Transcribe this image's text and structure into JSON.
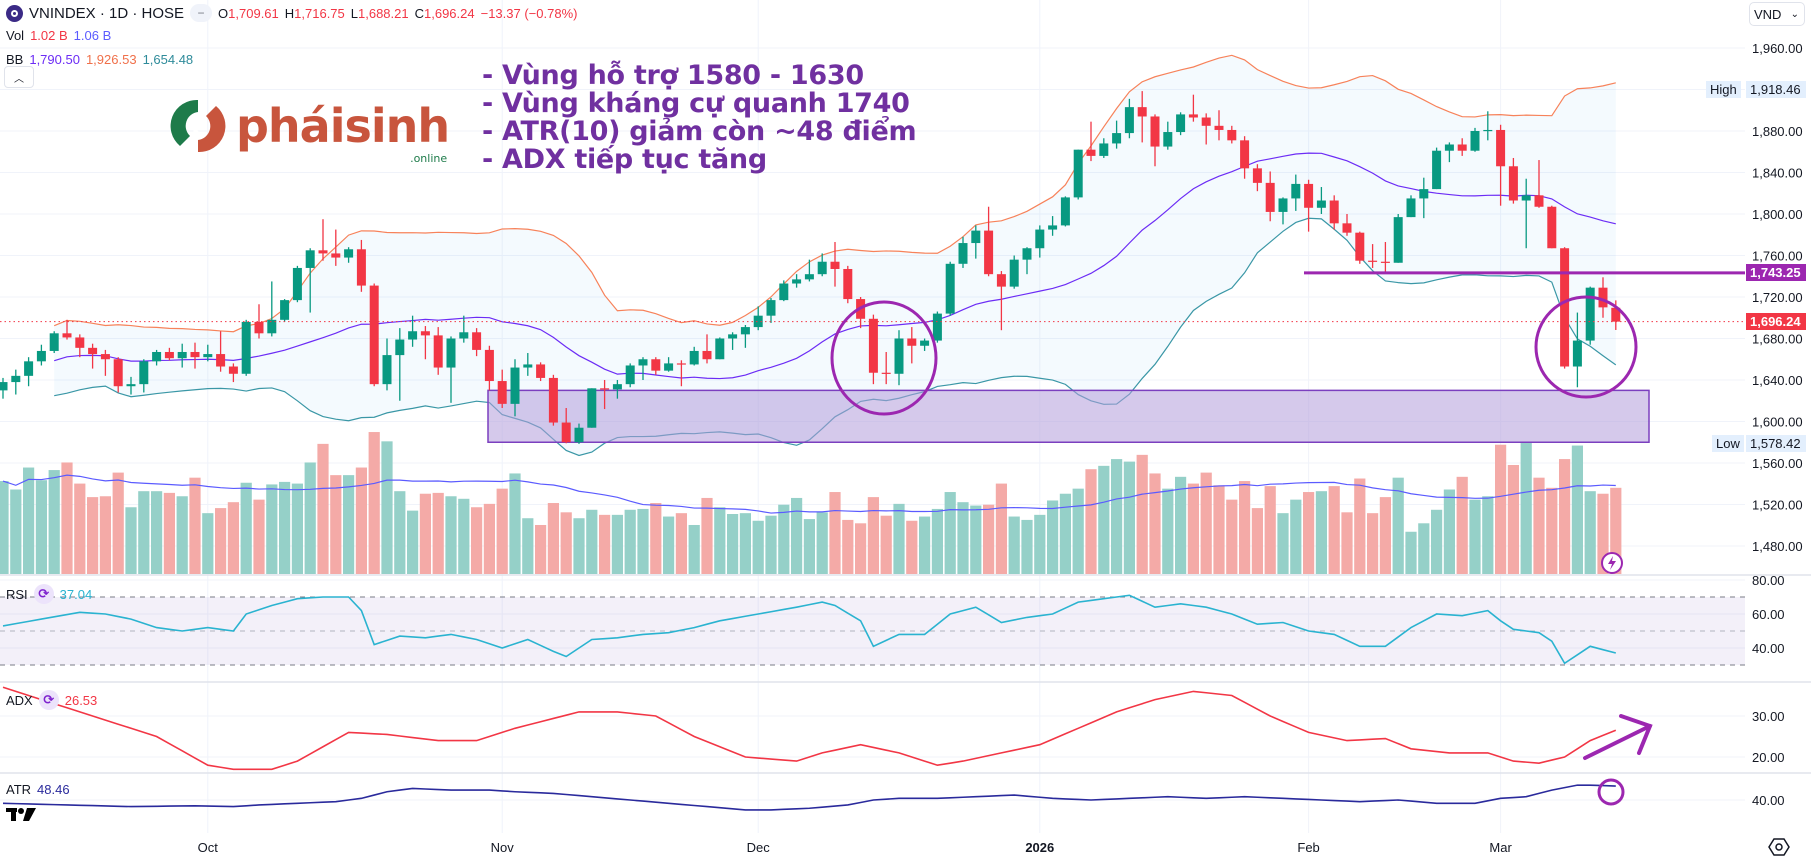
{
  "header": {
    "symbol": "VNINDEX · 1D · HOSE",
    "o_label": "O",
    "o": "1,709.61",
    "h_label": "H",
    "h": "1,716.75",
    "l_label": "L",
    "l": "1,688.21",
    "c_label": "C",
    "c": "1,696.24",
    "change": "−13.37 (−0.78%)",
    "vol_label": "Vol",
    "vol": "1.02 B",
    "vol_ma": "1.06 B",
    "bb_label": "BB",
    "bb_basis": "1,790.50",
    "bb_upper": "1,926.53",
    "bb_lower": "1,654.48"
  },
  "currency": "VND",
  "logo": {
    "text": "pháisinh",
    "sub": ".online"
  },
  "notes": [
    "- Vùng hỗ trợ 1580 - 1630",
    "- Vùng kháng cự quanh 1740",
    "- ATR(10) giảm còn ~48 điểm",
    "- ADX tiếp tục tăng"
  ],
  "axis_labels": {
    "high_label": "High",
    "high": "1,918.46",
    "low_label": "Low",
    "low": "1,578.42",
    "resistance": "1,743.25",
    "last": "1,696.24"
  },
  "indicators": {
    "rsi_label": "RSI",
    "rsi_value": "37.04",
    "adx_label": "ADX",
    "adx_value": "26.53",
    "atr_label": "ATR",
    "atr_value": "48.46"
  },
  "colors": {
    "up": "#089981",
    "down": "#f23645",
    "bb_upper": "#f7825a",
    "bb_basis": "#6c2cf5",
    "bb_lower": "#3a97a6",
    "rsi": "#2ab3d0",
    "adx": "#f23645",
    "atr": "#2a2a9c",
    "annotation": "#9c27b0",
    "note_text": "#7030a0"
  },
  "chart_data": {
    "type": "candlestick",
    "title": "VNINDEX · 1D · HOSE",
    "ylim": [
      1460,
      1980
    ],
    "price_ticks": [
      "1,960.00",
      "1,880.00",
      "1,840.00",
      "1,800.00",
      "1,760.00",
      "1,720.00",
      "1,680.00",
      "1,640.00",
      "1,600.00",
      "1,560.00",
      "1,520.00",
      "1,480.00"
    ],
    "price_tick_values": [
      1960,
      1880,
      1840,
      1800,
      1760,
      1720,
      1680,
      1640,
      1600,
      1560,
      1520,
      1480
    ],
    "time_labels": [
      {
        "label": "Oct",
        "index": 16
      },
      {
        "label": "Nov",
        "index": 39
      },
      {
        "label": "Dec",
        "index": 59
      },
      {
        "label": "2026",
        "index": 81
      },
      {
        "label": "Feb",
        "index": 102
      },
      {
        "label": "Mar",
        "index": 117
      }
    ],
    "candles_ohlc": [
      [
        1630,
        1642,
        1622,
        1638
      ],
      [
        1638,
        1650,
        1626,
        1644
      ],
      [
        1644,
        1662,
        1634,
        1658
      ],
      [
        1658,
        1674,
        1654,
        1668
      ],
      [
        1668,
        1687,
        1666,
        1685
      ],
      [
        1685,
        1698,
        1679,
        1681
      ],
      [
        1681,
        1684,
        1662,
        1671
      ],
      [
        1671,
        1675,
        1651,
        1665
      ],
      [
        1665,
        1669,
        1644,
        1660
      ],
      [
        1660,
        1662,
        1628,
        1634
      ],
      [
        1634,
        1643,
        1626,
        1636
      ],
      [
        1636,
        1660,
        1628,
        1658
      ],
      [
        1658,
        1669,
        1654,
        1667
      ],
      [
        1667,
        1671,
        1659,
        1661
      ],
      [
        1661,
        1675,
        1652,
        1667
      ],
      [
        1667,
        1676,
        1651,
        1662
      ],
      [
        1662,
        1674,
        1658,
        1665
      ],
      [
        1665,
        1687,
        1648,
        1653
      ],
      [
        1653,
        1656,
        1638,
        1646
      ],
      [
        1646,
        1698,
        1644,
        1696
      ],
      [
        1696,
        1713,
        1680,
        1685
      ],
      [
        1685,
        1735,
        1682,
        1698
      ],
      [
        1698,
        1718,
        1696,
        1717
      ],
      [
        1717,
        1750,
        1715,
        1748
      ],
      [
        1748,
        1767,
        1705,
        1765
      ],
      [
        1765,
        1795,
        1755,
        1762
      ],
      [
        1762,
        1785,
        1750,
        1758
      ],
      [
        1758,
        1768,
        1753,
        1766
      ],
      [
        1766,
        1775,
        1725,
        1731
      ],
      [
        1731,
        1733,
        1634,
        1636
      ],
      [
        1636,
        1680,
        1630,
        1664
      ],
      [
        1664,
        1690,
        1620,
        1679
      ],
      [
        1679,
        1702,
        1672,
        1687
      ],
      [
        1687,
        1692,
        1660,
        1683
      ],
      [
        1683,
        1691,
        1645,
        1652
      ],
      [
        1652,
        1682,
        1618,
        1680
      ],
      [
        1680,
        1702,
        1676,
        1686
      ],
      [
        1686,
        1690,
        1663,
        1669
      ],
      [
        1669,
        1673,
        1630,
        1639
      ],
      [
        1639,
        1650,
        1613,
        1617
      ],
      [
        1617,
        1660,
        1605,
        1652
      ],
      [
        1652,
        1666,
        1644,
        1655
      ],
      [
        1655,
        1657,
        1639,
        1642
      ],
      [
        1642,
        1645,
        1596,
        1599
      ],
      [
        1599,
        1613,
        1579,
        1580
      ],
      [
        1580,
        1598,
        1578.42,
        1594
      ],
      [
        1594,
        1632,
        1594,
        1632
      ],
      [
        1632,
        1640,
        1612,
        1631
      ],
      [
        1631,
        1640,
        1622,
        1636
      ],
      [
        1636,
        1656,
        1633,
        1654
      ],
      [
        1654,
        1662,
        1640,
        1660
      ],
      [
        1660,
        1662,
        1645,
        1649
      ],
      [
        1649,
        1662,
        1648,
        1656
      ],
      [
        1656,
        1659,
        1634,
        1655
      ],
      [
        1655,
        1672,
        1654,
        1668
      ],
      [
        1668,
        1684,
        1656,
        1660
      ],
      [
        1660,
        1681,
        1660,
        1680
      ],
      [
        1680,
        1686,
        1669,
        1684
      ],
      [
        1684,
        1693,
        1671,
        1691
      ],
      [
        1691,
        1711,
        1688,
        1702
      ],
      [
        1702,
        1719,
        1695,
        1717
      ],
      [
        1717,
        1736,
        1716,
        1733
      ],
      [
        1733,
        1742,
        1729,
        1737
      ],
      [
        1737,
        1756,
        1735,
        1742
      ],
      [
        1742,
        1762,
        1740,
        1754
      ],
      [
        1754,
        1773,
        1730,
        1747
      ],
      [
        1747,
        1750,
        1714,
        1718
      ],
      [
        1718,
        1720,
        1690,
        1699
      ],
      [
        1699,
        1703,
        1636,
        1647
      ],
      [
        1647,
        1667,
        1636,
        1646
      ],
      [
        1646,
        1688,
        1635,
        1680
      ],
      [
        1680,
        1691,
        1656,
        1673
      ],
      [
        1673,
        1680,
        1668,
        1678
      ],
      [
        1678,
        1706,
        1676,
        1704
      ],
      [
        1704,
        1754,
        1702,
        1752
      ],
      [
        1752,
        1778,
        1748,
        1772
      ],
      [
        1772,
        1789,
        1757,
        1784
      ],
      [
        1784,
        1807,
        1740,
        1742
      ],
      [
        1742,
        1745,
        1688,
        1730
      ],
      [
        1730,
        1760,
        1728,
        1756
      ],
      [
        1756,
        1768,
        1742,
        1767
      ],
      [
        1767,
        1789,
        1758,
        1785
      ],
      [
        1785,
        1798,
        1779,
        1789
      ],
      [
        1789,
        1817,
        1788,
        1816
      ],
      [
        1816,
        1862,
        1814,
        1862
      ],
      [
        1862,
        1889,
        1851,
        1856
      ],
      [
        1856,
        1873,
        1854,
        1868
      ],
      [
        1868,
        1890,
        1863,
        1878
      ],
      [
        1878,
        1911,
        1873,
        1903
      ],
      [
        1903,
        1918.46,
        1869,
        1894
      ],
      [
        1894,
        1896,
        1846,
        1865
      ],
      [
        1865,
        1889,
        1862,
        1879
      ],
      [
        1879,
        1898,
        1876,
        1896
      ],
      [
        1896,
        1915,
        1889,
        1893
      ],
      [
        1893,
        1897,
        1867,
        1885
      ],
      [
        1885,
        1900,
        1871,
        1881
      ],
      [
        1881,
        1885,
        1868,
        1871
      ],
      [
        1871,
        1875,
        1834,
        1844
      ],
      [
        1844,
        1848,
        1822,
        1830
      ],
      [
        1830,
        1841,
        1793,
        1802
      ],
      [
        1802,
        1816,
        1790,
        1815
      ],
      [
        1815,
        1838,
        1803,
        1829
      ],
      [
        1829,
        1833,
        1783,
        1806
      ],
      [
        1806,
        1826,
        1800,
        1813
      ],
      [
        1813,
        1818,
        1785,
        1791
      ],
      [
        1791,
        1800,
        1779,
        1782
      ],
      [
        1782,
        1783,
        1752,
        1755
      ],
      [
        1755,
        1771,
        1748,
        1754
      ],
      [
        1754,
        1773,
        1744,
        1753
      ],
      [
        1753,
        1800,
        1753,
        1797
      ],
      [
        1797,
        1818,
        1797,
        1815
      ],
      [
        1815,
        1835,
        1796,
        1824
      ],
      [
        1824,
        1864,
        1824,
        1861
      ],
      [
        1861,
        1869,
        1850,
        1867
      ],
      [
        1867,
        1873,
        1856,
        1861
      ],
      [
        1861,
        1883,
        1860,
        1880
      ],
      [
        1880,
        1899,
        1871,
        1881
      ],
      [
        1881,
        1886,
        1808,
        1846
      ],
      [
        1846,
        1854,
        1810,
        1813
      ],
      [
        1813,
        1834,
        1767,
        1818
      ],
      [
        1818,
        1852,
        1806,
        1807
      ],
      [
        1807,
        1808,
        1767,
        1767
      ],
      [
        1767,
        1768,
        1651,
        1653
      ],
      [
        1653,
        1705,
        1633,
        1678
      ],
      [
        1678,
        1730,
        1674,
        1729
      ],
      [
        1729,
        1739,
        1700,
        1710
      ],
      [
        1709.61,
        1716.75,
        1688.21,
        1696.24
      ]
    ],
    "volume_billions": [
      1.1,
      1.0,
      1.26,
      1.11,
      1.23,
      1.32,
      1.07,
      0.91,
      0.92,
      1.2,
      0.79,
      0.98,
      0.98,
      0.96,
      0.92,
      1.14,
      0.72,
      0.78,
      0.85,
      1.08,
      0.88,
      1.06,
      1.09,
      1.07,
      1.32,
      1.54,
      1.17,
      1.17,
      1.26,
      1.68,
      1.57,
      0.98,
      0.75,
      0.95,
      0.96,
      0.92,
      0.89,
      0.79,
      0.83,
      1.01,
      1.19,
      0.66,
      0.58,
      0.84,
      0.73,
      0.66,
      0.76,
      0.7,
      0.7,
      0.76,
      0.77,
      0.84,
      0.68,
      0.72,
      0.58,
      0.9,
      0.79,
      0.71,
      0.72,
      0.63,
      0.69,
      0.82,
      0.9,
      0.65,
      0.73,
      0.97,
      0.64,
      0.6,
      0.91,
      0.69,
      0.83,
      0.63,
      0.68,
      0.77,
      0.97,
      0.85,
      0.81,
      0.82,
      1.07,
      0.68,
      0.64,
      0.7,
      0.87,
      0.95,
      1.01,
      1.24,
      1.28,
      1.36,
      1.33,
      1.41,
      1.19,
      1.01,
      1.15,
      1.07,
      1.2,
      1.05,
      0.88,
      1.1,
      0.78,
      1.04,
      0.72,
      0.88,
      0.97,
      0.98,
      1.04,
      0.73,
      1.13,
      0.72,
      0.91,
      1.14,
      0.5,
      0.6,
      0.76,
      1.0,
      1.15,
      0.88,
      0.92,
      1.53,
      1.29,
      1.55,
      1.14,
      1.02,
      1.36,
      1.52,
      0.98,
      0.95,
      1.02
    ],
    "bollinger": {
      "period": 20,
      "stdev": 2
    },
    "volume_ma_period": 20,
    "rsi": {
      "index": [
        0,
        3,
        6,
        8,
        10,
        12,
        14,
        16,
        18,
        19,
        21,
        23,
        25,
        27,
        28,
        29,
        31,
        33,
        35,
        37,
        39,
        41,
        43,
        44,
        46,
        48,
        50,
        52,
        54,
        56,
        59,
        62,
        64,
        65,
        67,
        68,
        70,
        72,
        74,
        76,
        78,
        80,
        82,
        84,
        86,
        88,
        90,
        92,
        94,
        96,
        98,
        100,
        102,
        104,
        106,
        108,
        110,
        112,
        114,
        116,
        117,
        118,
        120,
        121,
        122,
        123,
        124,
        126
      ],
      "values": [
        53,
        57,
        61,
        60,
        57,
        52,
        50,
        52,
        50,
        60,
        65,
        69,
        70,
        70,
        62,
        42,
        47,
        46,
        48,
        45,
        40,
        45,
        38,
        35,
        45,
        46,
        48,
        49,
        52,
        56,
        60,
        64,
        67,
        65,
        56,
        41,
        48,
        48,
        60,
        64,
        55,
        58,
        60,
        67,
        69,
        71,
        64,
        66,
        64,
        60,
        54,
        55,
        50,
        48,
        41,
        41,
        52,
        60,
        59,
        62,
        56,
        51,
        49,
        44,
        31,
        36,
        41,
        37.04
      ],
      "ticks": [
        "80.00",
        "60.00",
        "40.00"
      ],
      "tick_values": [
        80,
        60,
        40
      ],
      "bands": [
        70,
        50,
        30
      ]
    },
    "adx": {
      "index": [
        0,
        4,
        8,
        12,
        16,
        18,
        21,
        23,
        27,
        30,
        34,
        37,
        40,
        45,
        48,
        51,
        54,
        58,
        62,
        64,
        67,
        70,
        73,
        75,
        78,
        81,
        84,
        87,
        90,
        93,
        96,
        99,
        102,
        105,
        108,
        110,
        113,
        116,
        118,
        120,
        122,
        124,
        126
      ],
      "values": [
        37,
        33,
        29,
        25,
        18,
        17,
        17,
        19,
        26,
        25.5,
        24,
        24,
        27,
        31,
        31,
        30,
        25,
        20,
        19,
        21,
        23,
        21,
        18,
        19,
        21,
        23,
        27,
        31,
        34,
        36,
        35,
        30,
        26,
        24,
        24.5,
        22,
        21,
        21,
        19,
        18.5,
        20,
        24,
        26.53
      ],
      "ticks": [
        "30.00",
        "20.00"
      ],
      "tick_values": [
        30,
        20
      ]
    },
    "atr": {
      "index": [
        0,
        5,
        10,
        15,
        18,
        20,
        23,
        26,
        28,
        30,
        32,
        35,
        38,
        40,
        43,
        46,
        49,
        52,
        55,
        58,
        60,
        63,
        66,
        68,
        70,
        73,
        76,
        79,
        82,
        85,
        88,
        91,
        94,
        97,
        100,
        103,
        106,
        109,
        112,
        115,
        117,
        119,
        121,
        123,
        124,
        126
      ],
      "values": [
        38,
        37,
        36,
        36.5,
        36,
        37,
        38,
        39,
        41,
        45,
        47,
        46,
        46,
        45,
        44,
        42,
        40,
        38,
        36,
        34,
        34,
        35,
        37,
        40,
        41,
        41,
        42,
        43,
        41,
        40,
        41,
        42,
        41,
        42,
        41,
        40,
        39,
        40,
        38,
        38,
        41,
        42,
        46,
        49,
        49,
        48.46
      ],
      "ticks": [
        "40.00"
      ],
      "tick_values": [
        40
      ]
    },
    "annotations": {
      "support_zone": [
        1580,
        1630
      ],
      "resistance_line": 1743.25,
      "last_price": 1696.24,
      "high": 1918.46,
      "low": 1578.42
    }
  }
}
